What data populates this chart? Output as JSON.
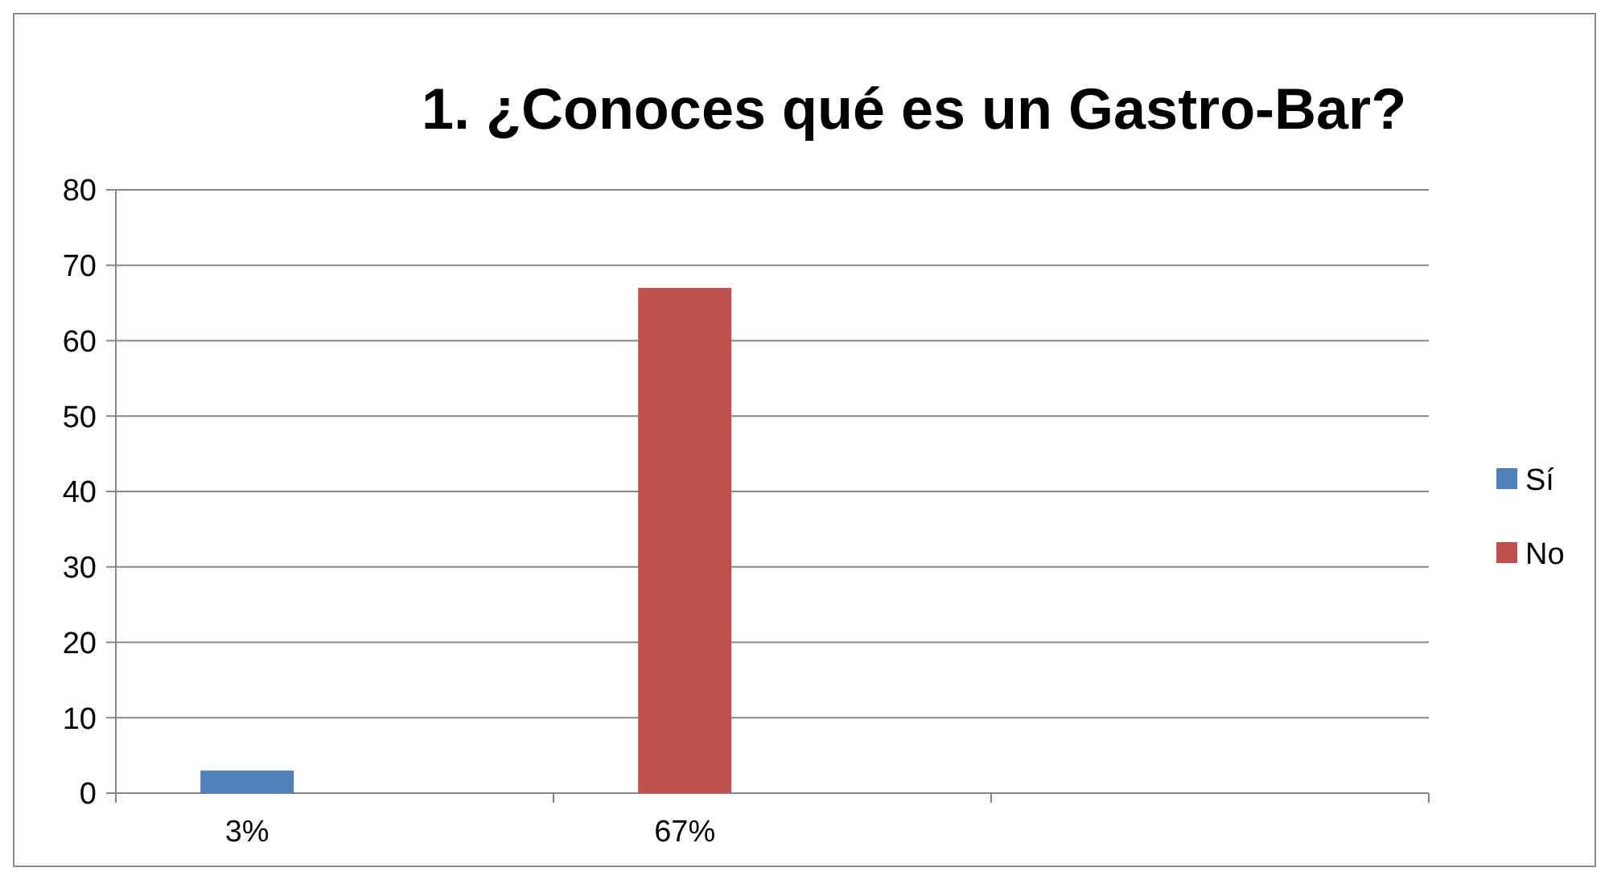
{
  "chart_data": {
    "type": "bar",
    "title": "1. ¿Conoces qué es un Gastro-Bar?",
    "categories": [
      "3%",
      "67%",
      null
    ],
    "series": [
      {
        "name": "Sí",
        "color": "#4f81bd",
        "values": [
          3,
          null,
          null
        ]
      },
      {
        "name": "No",
        "color": "#c0504d",
        "values": [
          null,
          67,
          null
        ]
      }
    ],
    "ylim": [
      0,
      80
    ],
    "yticks": [
      0,
      10,
      20,
      30,
      40,
      50,
      60,
      70,
      80
    ],
    "grid": "y",
    "legend": "right"
  }
}
